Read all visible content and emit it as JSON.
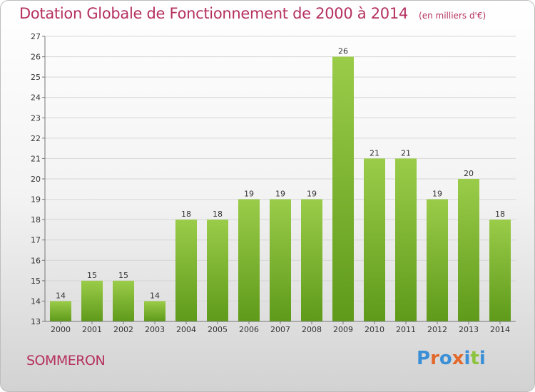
{
  "title": "Dotation Globale de Fonctionnement de 2000 à 2014",
  "unit_label": "(en milliers d'€)",
  "commune": "SOMMERON",
  "brand": {
    "text": "Proxiti",
    "letter_colors": [
      "#3b8fd6",
      "#e2682b",
      "#3b8fd6",
      "#e2682b",
      "#3b8fd6",
      "#8cc43f",
      "#3b8fd6"
    ]
  },
  "chart_data": {
    "type": "bar",
    "title": "Dotation Globale de Fonctionnement de 2000 à 2014",
    "xlabel": "",
    "ylabel": "",
    "categories": [
      "2000",
      "2001",
      "2002",
      "2003",
      "2004",
      "2005",
      "2006",
      "2007",
      "2008",
      "2009",
      "2010",
      "2011",
      "2012",
      "2013",
      "2014"
    ],
    "values": [
      14,
      15,
      15,
      14,
      18,
      18,
      19,
      19,
      19,
      26,
      21,
      21,
      19,
      20,
      18
    ],
    "ylim": [
      13,
      27
    ],
    "yticks": [
      13,
      14,
      15,
      16,
      17,
      18,
      19,
      20,
      21,
      22,
      23,
      24,
      25,
      26,
      27
    ],
    "grid": true,
    "bar_color_top": "#9acc49",
    "bar_color_bottom": "#5f9a1a"
  }
}
